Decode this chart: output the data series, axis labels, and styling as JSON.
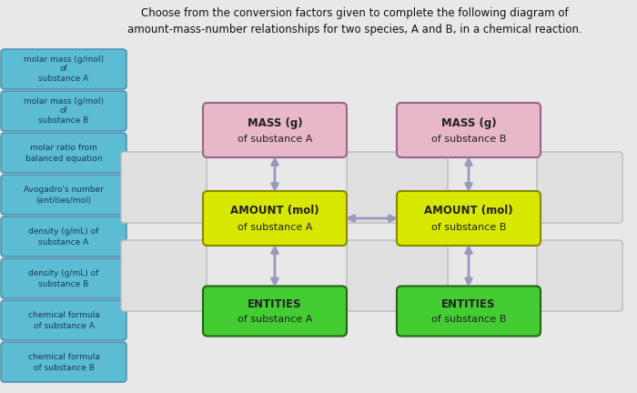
{
  "title": "Choose from the conversion factors given to complete the following diagram of\namount-mass-number relationships for two species, A and B, in a chemical reaction.",
  "title_fontsize": 8.5,
  "bg_color": "#e8e8e8",
  "main_bg": "#dcdcdc",
  "left_buttons": [
    {
      "text": "molar mass (g/mol)\nof\nsubstance A",
      "color": "#5bbcd4"
    },
    {
      "text": "molar mass (g/mol)\nof\nsubstance B",
      "color": "#5bbcd4"
    },
    {
      "text": "molar ratio from\nbalanced equation",
      "color": "#5bbcd4"
    },
    {
      "text": "Avogadro's number\n(entities/mol)",
      "color": "#5bbcd4"
    },
    {
      "text": "density (g/mL) of\nsubstance A",
      "color": "#5bbcd4"
    },
    {
      "text": "density (g/mL) of\nsubstance B",
      "color": "#5bbcd4"
    },
    {
      "text": "chemical formula\nof substance A",
      "color": "#5bbcd4"
    },
    {
      "text": "chemical formula\nof substance B",
      "color": "#5bbcd4"
    }
  ],
  "mass_color": "#e8b8c8",
  "amount_color": "#d8e800",
  "entities_color": "#44cc33",
  "arrow_color": "#9999bb",
  "empty_box_color": "#e0e0e0",
  "empty_box_edge": "#bbbbbb"
}
